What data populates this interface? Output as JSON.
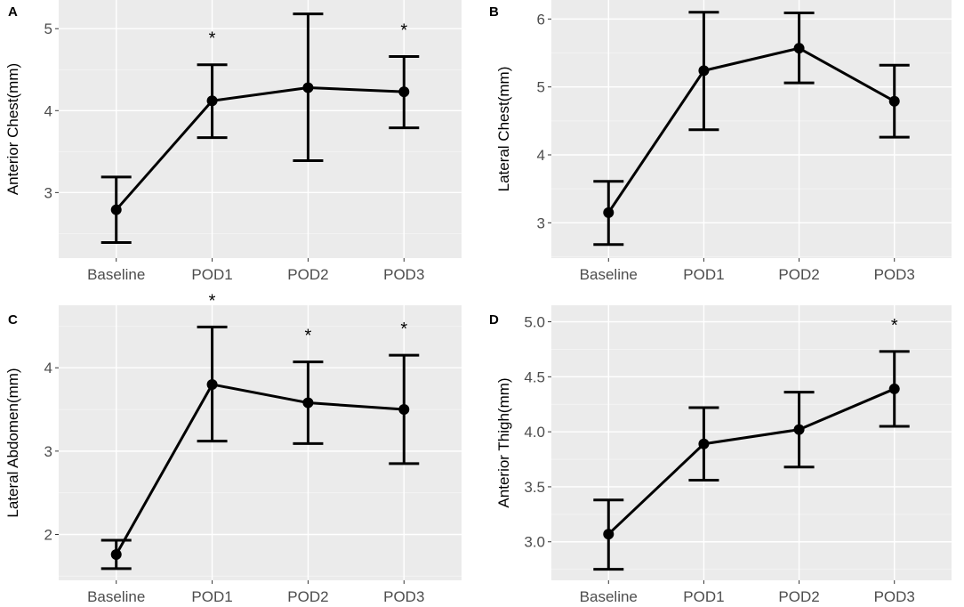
{
  "chart_data": [
    {
      "type": "line",
      "panel_label": "A",
      "categories": [
        "Baseline",
        "POD1",
        "POD2",
        "POD3"
      ],
      "values": [
        2.79,
        4.12,
        4.28,
        4.23
      ],
      "error_low": [
        2.39,
        3.67,
        3.39,
        3.79
      ],
      "error_high": [
        3.19,
        4.56,
        5.18,
        4.66
      ],
      "significance": [
        "",
        "*",
        "",
        "*"
      ],
      "xlabel": "",
      "ylabel": "Anterior Chest(mm)",
      "ylim": [
        2.2,
        5.35
      ],
      "yticks": [
        3,
        4,
        5
      ],
      "ytick_labels": [
        "3",
        "4",
        "5"
      ],
      "grid": true
    },
    {
      "type": "line",
      "panel_label": "B",
      "categories": [
        "Baseline",
        "POD1",
        "POD2",
        "POD3"
      ],
      "values": [
        3.15,
        5.24,
        5.57,
        4.79
      ],
      "error_low": [
        2.68,
        4.37,
        5.06,
        4.26
      ],
      "error_high": [
        3.61,
        6.1,
        6.09,
        5.32
      ],
      "significance": [
        "",
        "",
        "",
        ""
      ],
      "xlabel": "",
      "ylabel": "Lateral Chest(mm)",
      "ylim": [
        2.48,
        6.28
      ],
      "yticks": [
        3,
        4,
        5,
        6
      ],
      "ytick_labels": [
        "3",
        "4",
        "5",
        "6"
      ],
      "grid": true
    },
    {
      "type": "line",
      "panel_label": "C",
      "categories": [
        "Baseline",
        "POD1",
        "POD2",
        "POD3"
      ],
      "values": [
        1.76,
        3.8,
        3.58,
        3.5
      ],
      "error_low": [
        1.59,
        3.12,
        3.09,
        2.85
      ],
      "error_high": [
        1.93,
        4.49,
        4.07,
        4.15
      ],
      "significance": [
        "",
        "*",
        "*",
        "*"
      ],
      "xlabel": "",
      "ylabel": "Lateral Abdomen(mm)",
      "ylim": [
        1.45,
        4.75
      ],
      "yticks": [
        2,
        3,
        4
      ],
      "ytick_labels": [
        "2",
        "3",
        "4"
      ],
      "grid": true
    },
    {
      "type": "line",
      "panel_label": "D",
      "categories": [
        "Baseline",
        "POD1",
        "POD2",
        "POD3"
      ],
      "values": [
        3.07,
        3.89,
        4.02,
        4.39
      ],
      "error_low": [
        2.75,
        3.56,
        3.68,
        4.05
      ],
      "error_high": [
        3.38,
        4.22,
        4.36,
        4.73
      ],
      "significance": [
        "",
        "",
        "",
        "*"
      ],
      "xlabel": "",
      "ylabel": "Anterior Thigh(mm)",
      "ylim": [
        2.65,
        5.15
      ],
      "yticks": [
        3.0,
        3.5,
        4.0,
        4.5,
        5.0
      ],
      "ytick_labels": [
        "3.0",
        "3.5",
        "4.0",
        "4.5",
        "5.0"
      ],
      "grid": true
    }
  ]
}
